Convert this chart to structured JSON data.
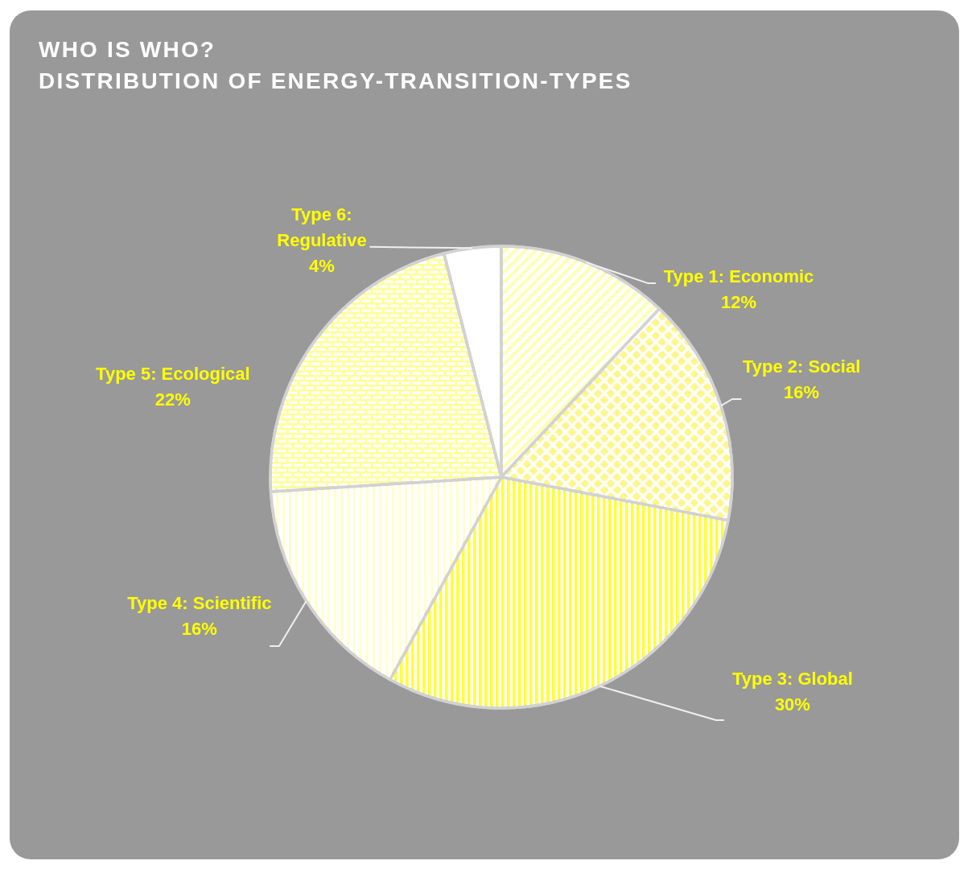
{
  "chart_data": {
    "type": "pie",
    "title": "WHO IS WHO?",
    "subtitle": "DISTRIBUTION OF ENERGY-TRANSITION-TYPES",
    "categories": [
      "Type 1: Economic",
      "Type 2: Social",
      "Type 3: Global",
      "Type 4: Scientific",
      "Type 5: Ecological",
      "Type 6: Regulative"
    ],
    "values": [
      12,
      16,
      30,
      16,
      22,
      4
    ],
    "value_labels": [
      "12%",
      "16%",
      "30%",
      "16%",
      "22%",
      "4%"
    ],
    "colors": [
      "#ffffb3",
      "#fff68c",
      "#ffff33",
      "#ffffcc",
      "#ffff99",
      "#ffffff"
    ],
    "legend": false
  }
}
